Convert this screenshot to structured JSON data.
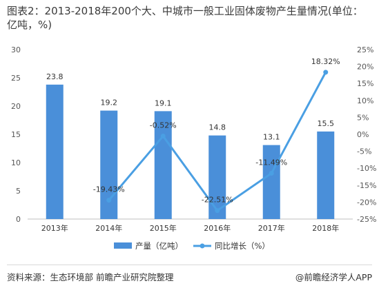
{
  "chart_data": {
    "type": "bar",
    "title": "图表2：2013-2018年200个大、中城市一般工业固体废物产生量情况(单位：亿吨，%)",
    "categories": [
      "2013年",
      "2014年",
      "2015年",
      "2016年",
      "2017年",
      "2018年"
    ],
    "series": [
      {
        "name": "产量（亿吨）",
        "type": "bar",
        "axis": "left",
        "color": "#4a8fd9",
        "values": [
          23.8,
          19.2,
          19.1,
          14.8,
          13.1,
          15.5
        ],
        "labels": [
          "23.8",
          "19.2",
          "19.1",
          "14.8",
          "13.1",
          "15.5"
        ]
      },
      {
        "name": "同比增长（%）",
        "type": "line",
        "axis": "right",
        "color": "#4a9fe3",
        "values": [
          null,
          -19.43,
          -0.52,
          -22.51,
          -11.49,
          18.32
        ],
        "labels": [
          "",
          "-19.43%",
          "-0.52%",
          "-22.51%",
          "-11.49%",
          "18.32%"
        ]
      }
    ],
    "y_left": {
      "min": 0,
      "max": 30,
      "ticks": [
        "0",
        "5",
        "10",
        "15",
        "20",
        "25",
        "30"
      ]
    },
    "y_right": {
      "min": -25,
      "max": 25,
      "ticks": [
        "-25%",
        "-20%",
        "-15%",
        "-10%",
        "-5%",
        "0%",
        "5%",
        "10%",
        "15%",
        "20%",
        "25%"
      ]
    },
    "legend_position": "bottom",
    "grid": false
  },
  "footer": {
    "source": "资料来源：生态环境部 前瞻产业研究院整理",
    "brand": "@前瞻经济学人APP"
  }
}
